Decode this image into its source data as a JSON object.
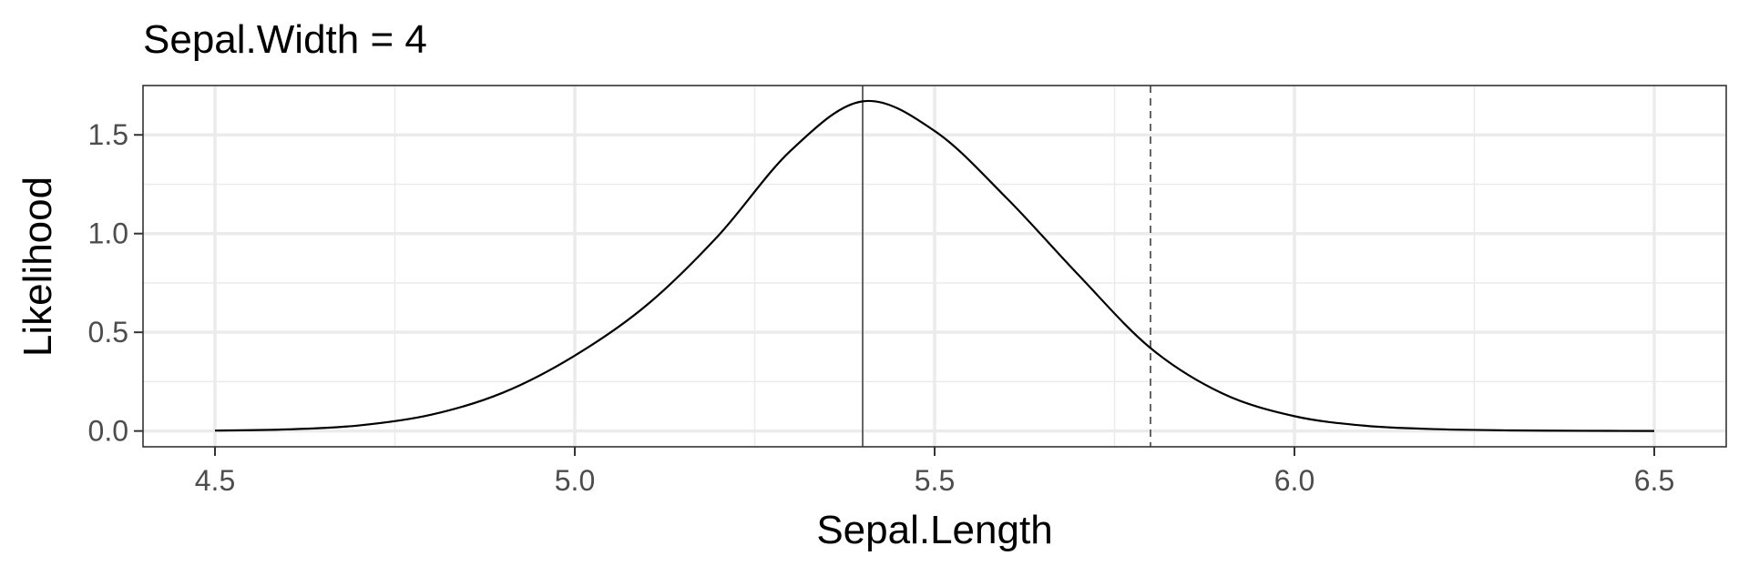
{
  "chart_data": {
    "type": "line",
    "title": "Sepal.Width = 4",
    "xlabel": "Sepal.Length",
    "ylabel": "Likelihood",
    "xlim": [
      4.4,
      6.6
    ],
    "ylim": [
      -0.08,
      1.75
    ],
    "x_ticks": [
      4.5,
      5.0,
      5.5,
      6.0,
      6.5
    ],
    "x_tick_labels": [
      "4.5",
      "5.0",
      "5.5",
      "6.0",
      "6.5"
    ],
    "y_ticks": [
      0.0,
      0.5,
      1.0,
      1.5
    ],
    "y_tick_labels": [
      "0.0",
      "0.5",
      "1.0",
      "1.5"
    ],
    "x_minor_ticks": [
      4.75,
      5.25,
      5.75,
      6.25
    ],
    "y_minor_ticks": [
      0.25,
      0.75,
      1.25
    ],
    "grid": true,
    "series": [
      {
        "x": [
          4.5,
          4.6,
          4.7,
          4.8,
          4.9,
          5.0,
          5.1,
          5.2,
          5.3,
          5.4,
          5.5,
          5.6,
          5.7,
          5.8,
          5.9,
          6.0,
          6.1,
          6.2,
          6.3,
          6.4,
          6.5
        ],
        "values": [
          0.002,
          0.008,
          0.028,
          0.082,
          0.194,
          0.382,
          0.638,
          0.992,
          1.42,
          1.67,
          1.52,
          1.18,
          0.79,
          0.42,
          0.19,
          0.075,
          0.026,
          0.009,
          0.003,
          0.001,
          0.0
        ],
        "color": "#000000"
      }
    ],
    "reference_lines": [
      {
        "x": 5.4,
        "style": "solid",
        "color": "#666666"
      },
      {
        "x": 5.8,
        "style": "dashed",
        "color": "#666666"
      }
    ]
  }
}
